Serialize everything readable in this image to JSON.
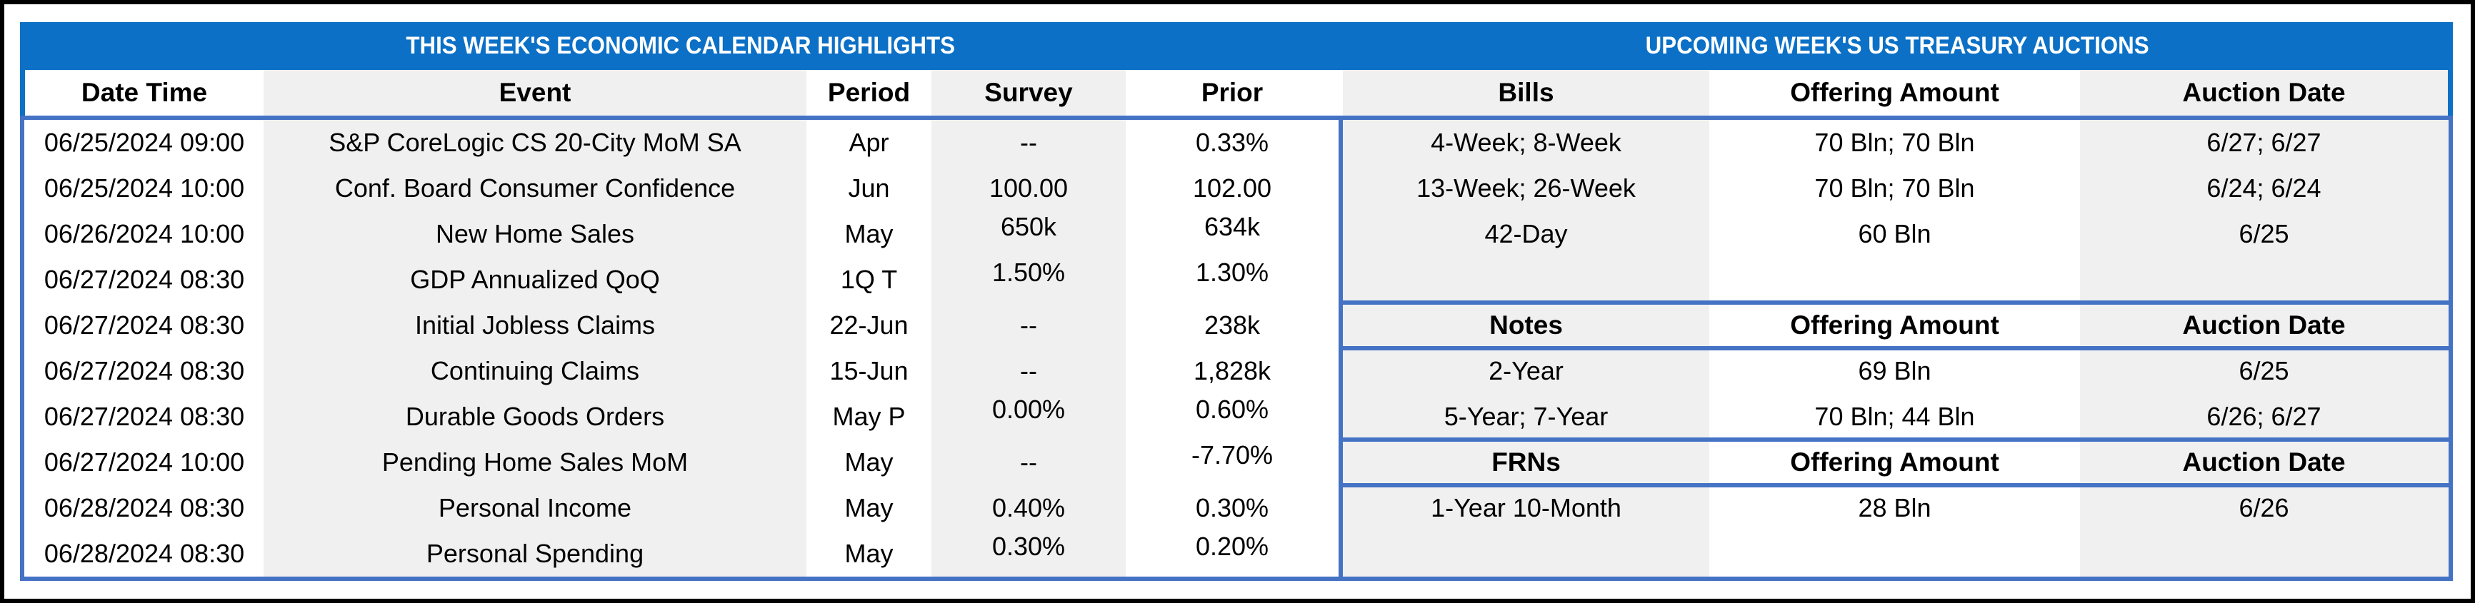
{
  "calendar": {
    "title": "THIS WEEK'S ECONOMIC CALENDAR HIGHLIGHTS",
    "columns": [
      "Date Time",
      "Event",
      "Period",
      "Survey",
      "Prior"
    ],
    "rows": [
      {
        "date_time": "06/25/2024 09:00",
        "event": "S&P CoreLogic CS 20-City MoM SA",
        "period": "Apr",
        "survey": "--",
        "prior": "0.33%"
      },
      {
        "date_time": "06/25/2024 10:00",
        "event": "Conf. Board Consumer Confidence",
        "period": "Jun",
        "survey": "100.00",
        "prior": "102.00"
      },
      {
        "date_time": "06/26/2024 10:00",
        "event": "New Home Sales",
        "period": "May",
        "survey": "650k",
        "prior": "634k"
      },
      {
        "date_time": "06/27/2024 08:30",
        "event": "GDP Annualized QoQ",
        "period": "1Q T",
        "survey": "1.50%",
        "prior": "1.30%"
      },
      {
        "date_time": "06/27/2024 08:30",
        "event": "Initial Jobless Claims",
        "period": "22-Jun",
        "survey": "--",
        "prior": "238k"
      },
      {
        "date_time": "06/27/2024 08:30",
        "event": "Continuing Claims",
        "period": "15-Jun",
        "survey": "--",
        "prior": "1,828k"
      },
      {
        "date_time": "06/27/2024 08:30",
        "event": "Durable Goods Orders",
        "period": "May P",
        "survey": "0.00%",
        "prior": "0.60%"
      },
      {
        "date_time": "06/27/2024 10:00",
        "event": "Pending Home Sales MoM",
        "period": "May",
        "survey": "--",
        "prior": "-7.70%"
      },
      {
        "date_time": "06/28/2024 08:30",
        "event": "Personal Income",
        "period": "May",
        "survey": "0.40%",
        "prior": "0.30%"
      },
      {
        "date_time": "06/28/2024 08:30",
        "event": "Personal Spending",
        "period": "May",
        "survey": "0.30%",
        "prior": "0.20%"
      }
    ]
  },
  "treasury": {
    "title": "UPCOMING WEEK'S US TREASURY AUCTIONS",
    "bills": {
      "columns": [
        "Bills",
        "Offering Amount",
        "Auction Date"
      ],
      "rows": [
        {
          "security": "4-Week; 8-Week",
          "offering_amount": "70 Bln; 70 Bln",
          "auction_date": "6/27; 6/27"
        },
        {
          "security": "13-Week; 26-Week",
          "offering_amount": "70 Bln; 70 Bln",
          "auction_date": "6/24; 6/24"
        },
        {
          "security": "42-Day",
          "offering_amount": "60 Bln",
          "auction_date": "6/25"
        }
      ]
    },
    "notes": {
      "columns": [
        "Notes",
        "Offering Amount",
        "Auction Date"
      ],
      "rows": [
        {
          "security": "2-Year",
          "offering_amount": "69 Bln",
          "auction_date": "6/25"
        },
        {
          "security": "5-Year; 7-Year",
          "offering_amount": "70 Bln; 44 Bln",
          "auction_date": "6/26; 6/27"
        }
      ]
    },
    "frns": {
      "columns": [
        "FRNs",
        "Offering Amount",
        "Auction Date"
      ],
      "rows": [
        {
          "security": "1-Year 10-Month",
          "offering_amount": "28 Bln",
          "auction_date": "6/26"
        }
      ]
    }
  },
  "colors": {
    "title_band_blue": "#0B70C6",
    "table_border_blue": "#4472C4",
    "column_stripe_gray": "#F0F0F0",
    "outer_border_black": "#000000"
  }
}
